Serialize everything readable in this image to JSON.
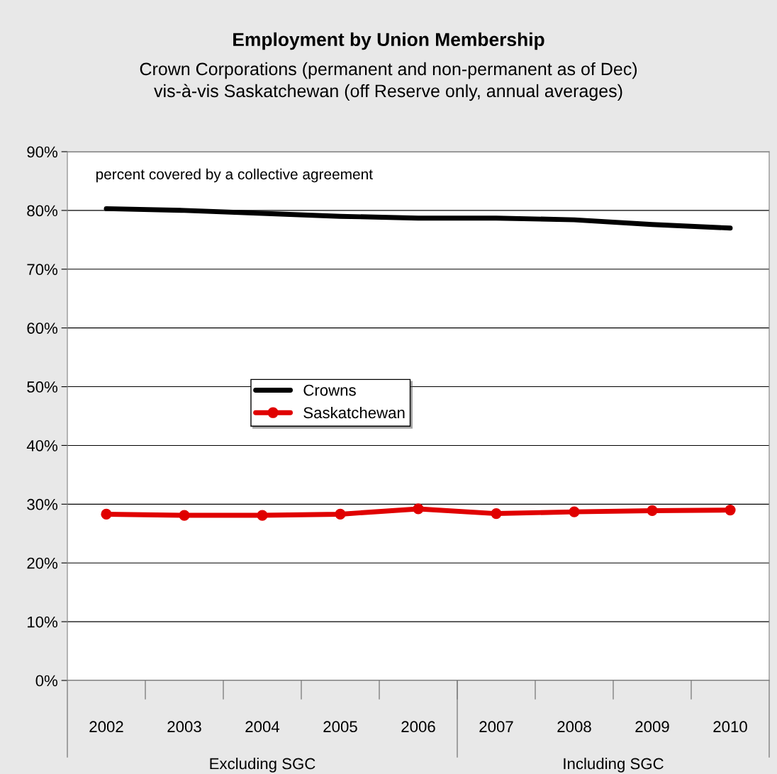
{
  "chart_data": {
    "type": "line",
    "title": "Employment by Union Membership",
    "subtitle": "Crown Corporations (permanent and non-permanent as of Dec)\nvis-à-vis Saskatchewan (off Reserve only, annual averages)",
    "categories": [
      "2002",
      "2003",
      "2004",
      "2005",
      "2006",
      "2007",
      "2008",
      "2009",
      "2010"
    ],
    "series": [
      {
        "name": "Crowns",
        "color": "#000000",
        "marker": "none",
        "values": [
          80.3,
          80.0,
          79.5,
          79.0,
          78.7,
          78.7,
          78.4,
          77.6,
          77.0
        ]
      },
      {
        "name": "Saskatchewan",
        "color": "#e00000",
        "marker": "circle",
        "values": [
          28.3,
          28.1,
          28.1,
          28.3,
          29.2,
          28.4,
          28.7,
          28.9,
          29.0
        ]
      }
    ],
    "ylim": [
      0,
      90
    ],
    "yticks": [
      {
        "value": 0,
        "label": "0%"
      },
      {
        "value": 10,
        "label": "10%"
      },
      {
        "value": 20,
        "label": "20%"
      },
      {
        "value": 30,
        "label": "30%"
      },
      {
        "value": 40,
        "label": "40%"
      },
      {
        "value": 50,
        "label": "50%"
      },
      {
        "value": 60,
        "label": "60%"
      },
      {
        "value": 70,
        "label": "70%"
      },
      {
        "value": 80,
        "label": "80%"
      },
      {
        "value": 90,
        "label": "90%"
      }
    ],
    "grid": "y",
    "legend": "center",
    "line_style": "solid",
    "annotations": [
      "percent covered by a collective agreement",
      "Excluding SGC",
      "Including SGC"
    ]
  }
}
